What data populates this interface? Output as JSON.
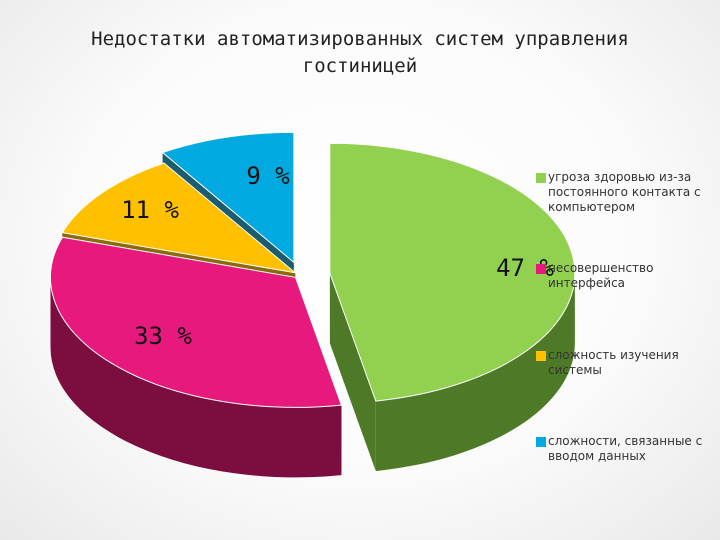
{
  "chart_data": {
    "type": "pie",
    "title_lines": [
      "Недостатки автоматизированных систем управления",
      "гостиницей"
    ],
    "slices": [
      {
        "label": "угроза здоровью из-за постоянного контакта с компьютером",
        "value": 47,
        "value_label": "47 %",
        "color": "#92d050",
        "side_color": "#4e7a28"
      },
      {
        "label": "несовершенство интерфейса",
        "value": 33,
        "value_label": "33 %",
        "color": "#e8197d",
        "side_color": "#7b0e3e"
      },
      {
        "label": "сложность изучения системы",
        "value": 11,
        "value_label": "11 %",
        "color": "#ffc000",
        "side_color": "#8a6a0a"
      },
      {
        "label": "сложности, связанные с вводом данных",
        "value": 9,
        "value_label": "9 %",
        "color": "#00a9e0",
        "side_color": "#1b5d6e"
      }
    ],
    "legend_position": "right"
  }
}
